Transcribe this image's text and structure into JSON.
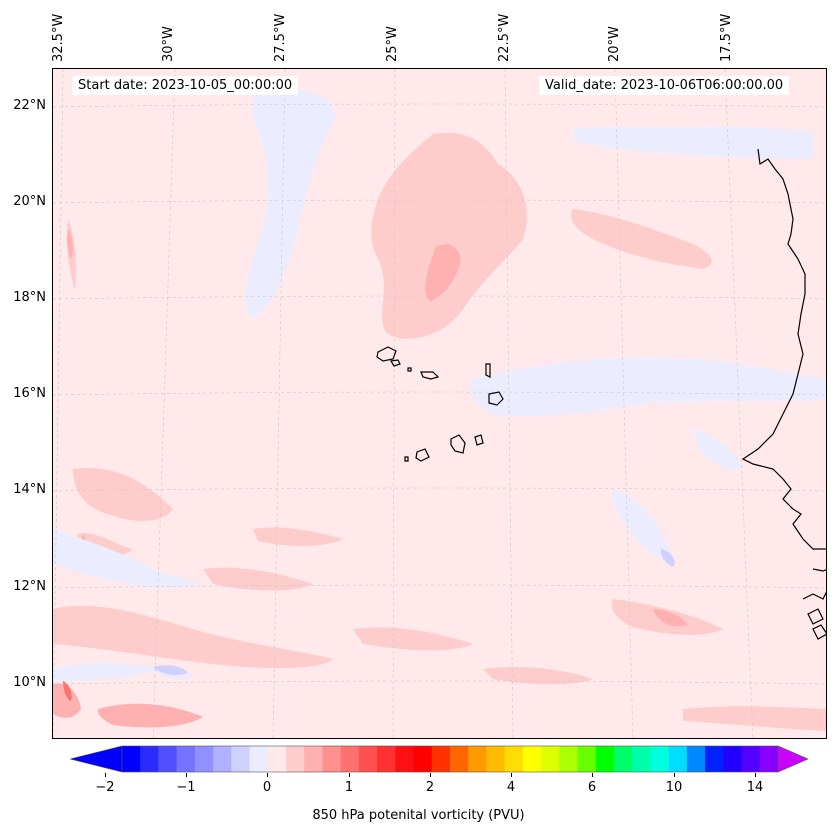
{
  "header": {
    "start_date": "Start date: 2023-10-05_00:00:00",
    "valid_date": "Valid_date: 2023-10-06T06:00:00.00"
  },
  "map": {
    "longitude_labels": [
      "32.5°W",
      "30°W",
      "27.5°W",
      "25°W",
      "22.5°W",
      "20°W",
      "17.5°W"
    ],
    "latitude_labels": [
      "22°N",
      "20°N",
      "18°N",
      "16°N",
      "14°N",
      "12°N",
      "10°N"
    ],
    "background_color": "#ffe9ea",
    "coastline_color": "#000000",
    "gridline_color": "#c8c8c8"
  },
  "colorbar": {
    "label": "850 hPa potenital vorticity (PVU)",
    "ticks": [
      "−2",
      "−1",
      "0",
      "1",
      "2",
      "4",
      "6",
      "10",
      "14"
    ],
    "colors": [
      "#0000ff",
      "#2b2bff",
      "#5050ff",
      "#7373ff",
      "#9090ff",
      "#b0b0ff",
      "#d0d0ff",
      "#ececff",
      "#ffe9ea",
      "#ffcccc",
      "#ffb0b0",
      "#ff9090",
      "#ff7070",
      "#ff5050",
      "#ff3030",
      "#ff1010",
      "#ff0000",
      "#ff3300",
      "#ff6600",
      "#ff9900",
      "#ffbb00",
      "#ffdd00",
      "#ffff00",
      "#ddff00",
      "#aaff00",
      "#66ff00",
      "#00ff00",
      "#00ff66",
      "#00ffaa",
      "#00ffdd",
      "#00ddff",
      "#0088ff",
      "#0022ff",
      "#2200ff",
      "#5500ff",
      "#8800ff"
    ],
    "under_color": "#0000ff",
    "over_color": "#cc00ff"
  }
}
